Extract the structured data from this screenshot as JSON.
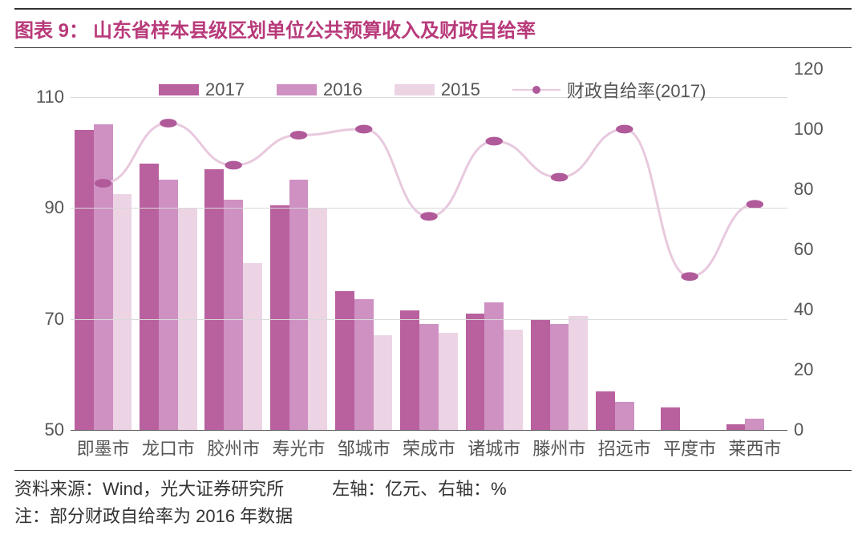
{
  "title": {
    "prefix": "图表 9：",
    "text": "山东省样本县级区划单位公共预算收入及财政自给率"
  },
  "legend": {
    "series_2017": "2017",
    "series_2016": "2016",
    "series_2015": "2015",
    "series_rate": "财政自给率(2017)"
  },
  "chart": {
    "type": "bar+line",
    "background_color": "#ffffff",
    "grid_color": "#d9d9d9",
    "text_color": "#555555",
    "title_fontsize": 24,
    "label_fontsize": 22,
    "categories": [
      "即墨市",
      "龙口市",
      "胶州市",
      "寿光市",
      "邹城市",
      "荣成市",
      "诸城市",
      "滕州市",
      "招远市",
      "平度市",
      "莱西市"
    ],
    "left_axis": {
      "min": 50,
      "max": 115,
      "ticks": [
        50,
        70,
        90,
        110
      ],
      "unit": "亿元"
    },
    "right_axis": {
      "min": 0,
      "max": 120,
      "ticks": [
        0,
        20,
        40,
        60,
        80,
        100,
        120
      ],
      "unit": "%"
    },
    "group_gap_ratio": 0.12,
    "bar_series": [
      {
        "name": "2017",
        "color": "#b9609e",
        "values": [
          104,
          98,
          97,
          90.5,
          75,
          71.5,
          71,
          70,
          57,
          54,
          51
        ]
      },
      {
        "name": "2016",
        "color": "#cf90c2",
        "values": [
          105,
          95,
          91.5,
          95,
          73.5,
          69,
          73,
          69,
          55,
          50,
          52
        ]
      },
      {
        "name": "2015",
        "color": "#ecd4e5",
        "values": [
          92.5,
          90,
          80,
          90,
          67,
          67.5,
          68,
          70.5,
          50,
          50,
          50
        ]
      }
    ],
    "line_series": {
      "name": "财政自给率(2017)",
      "color": "#b05a9a",
      "line_color": "#e8c9de",
      "line_width": 3,
      "marker_radius": 6,
      "values": [
        82,
        102,
        88,
        98,
        100,
        71,
        96,
        84,
        100,
        51,
        75
      ]
    }
  },
  "footer": {
    "source_label": "资料来源：",
    "source_value": "Wind，光大证券研究所",
    "axis_note_left": "左轴：亿元、",
    "axis_note_right": "右轴：%",
    "note_label": "注：",
    "note_value": "部分财政自给率为 2016 年数据"
  }
}
